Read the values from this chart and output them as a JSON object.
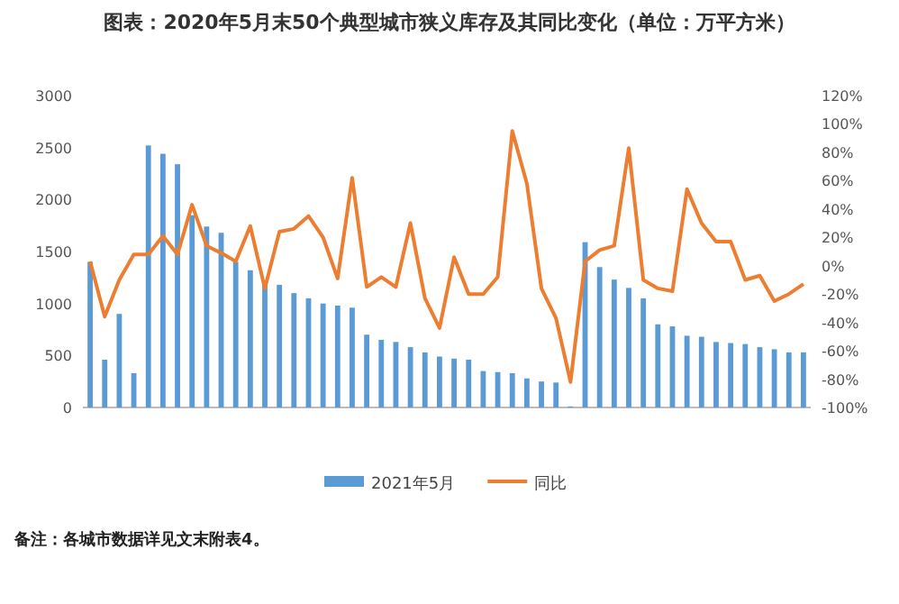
{
  "chart_data": {
    "type": "bar",
    "title": "图表：2020年5月末50个典型城市狭义库存及其同比变化（单位：万平方米）",
    "categories": [
      null,
      null,
      null,
      null,
      null,
      null,
      null,
      null,
      null,
      null,
      null,
      null,
      null,
      null,
      null,
      null,
      null,
      null,
      null,
      null,
      null,
      null,
      null,
      null,
      null,
      null,
      null,
      null,
      null,
      null,
      null,
      null,
      null,
      null,
      null,
      null,
      null,
      null,
      null,
      null,
      null,
      null,
      null,
      null,
      null,
      null,
      null,
      null,
      null,
      null
    ],
    "series": [
      {
        "name": "2021年5月",
        "color": "#5b9bd5",
        "values": [
          1400,
          460,
          900,
          330,
          2520,
          2440,
          2340,
          1850,
          1740,
          1680,
          1400,
          1320,
          1200,
          1180,
          1100,
          1050,
          1000,
          980,
          960,
          700,
          650,
          630,
          580,
          530,
          490,
          470,
          460,
          350,
          340,
          330,
          280,
          250,
          240,
          10,
          1590,
          1350,
          1230,
          1150,
          1050,
          800,
          780,
          690,
          680,
          630,
          620,
          610,
          580,
          560,
          530,
          530
        ]
      },
      {
        "name": "同比",
        "type": "line",
        "axis": "y2",
        "color": "#ed7d31",
        "values": [
          3,
          -36,
          -10,
          8,
          8,
          21,
          8,
          43,
          14,
          9,
          3,
          28,
          -16,
          24,
          26,
          35,
          20,
          -9,
          62,
          -15,
          -8,
          -15,
          30,
          -23,
          -44,
          6,
          -20,
          -20,
          -8,
          95,
          58,
          -16,
          -37,
          -82,
          3,
          11,
          14,
          83,
          -10,
          -16,
          -18,
          54,
          30,
          17,
          17,
          -10,
          -7,
          -25,
          -20,
          -13
        ]
      }
    ],
    "ylim": [
      0,
      3000
    ],
    "yticks": [
      0,
      500,
      1000,
      1500,
      2000,
      2500,
      3000
    ],
    "y2lim": [
      -100,
      120
    ],
    "y2ticks": [
      {
        "value": -100,
        "label": "-100%"
      },
      {
        "value": -80,
        "label": "-80%"
      },
      {
        "value": -60,
        "label": "-60%"
      },
      {
        "value": -40,
        "label": "-40%"
      },
      {
        "value": -20,
        "label": "-20%"
      },
      {
        "value": 0,
        "label": "0%"
      },
      {
        "value": 20,
        "label": "20%"
      },
      {
        "value": 40,
        "label": "40%"
      },
      {
        "value": 60,
        "label": "60%"
      },
      {
        "value": 80,
        "label": "80%"
      },
      {
        "value": 100,
        "label": "100%"
      },
      {
        "value": 120,
        "label": "120%"
      }
    ],
    "legend": "bottom",
    "grid": false,
    "annotations": [
      "备注：各城市数据详见文末附表4。"
    ]
  }
}
